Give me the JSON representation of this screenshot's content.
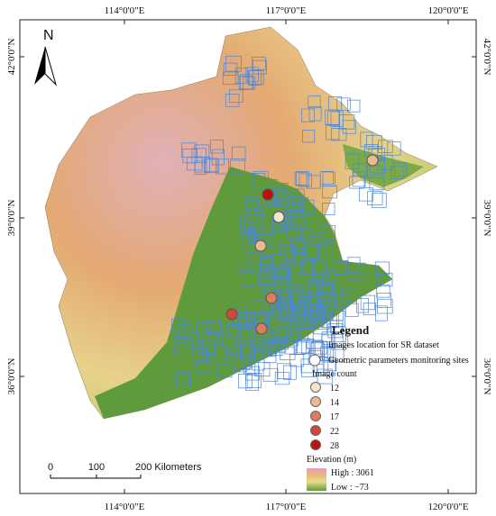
{
  "map": {
    "north_arrow": "N",
    "lon_labels": [
      "114°0'0\"E",
      "117°0'0\"E",
      "120°0'0\"E"
    ],
    "lat_labels": [
      "42°0'0\"N",
      "39°0'0\"N",
      "36°0'0\"N"
    ],
    "legend": {
      "title": "Legend",
      "items": [
        "Images location for SR dataset",
        "Geometric parameters monitoring sites"
      ],
      "count_title": "Image count",
      "counts": [
        12,
        14,
        17,
        22,
        28
      ],
      "elevation_title": "Elevation (m)",
      "high": "High : 3061",
      "low": "Low : −73"
    },
    "scale": {
      "labels": [
        "0",
        "100",
        "200 Kilometers"
      ]
    },
    "sites": [
      28,
      12,
      14,
      17,
      22,
      17,
      14
    ]
  }
}
